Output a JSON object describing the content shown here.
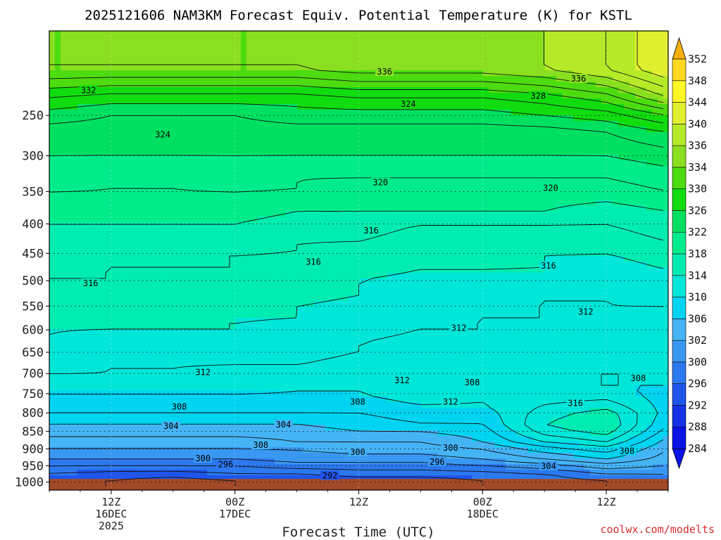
{
  "chart_data": {
    "type": "heatmap",
    "title": "2025121606 NAM3KM Forecast Equiv. Potential Temperature (K) for KSTL",
    "xlabel": "Forecast Time (UTC)",
    "ylabel": "",
    "credit": "coolwx.com/modelts",
    "y_axis": {
      "scale": "pressure",
      "reversed": true,
      "range": [
        1025,
        165
      ],
      "ticks": [
        250,
        300,
        350,
        400,
        450,
        500,
        550,
        600,
        650,
        700,
        750,
        800,
        850,
        900,
        950,
        1000
      ],
      "tick_labels": [
        "250",
        "300",
        "350",
        "400",
        "450",
        "500",
        "550",
        "600",
        "650",
        "700",
        "750",
        "800",
        "850",
        "900",
        "950",
        "1000"
      ]
    },
    "x_axis": {
      "units": "forecast hour",
      "range": [
        0,
        60
      ],
      "ticks": [
        {
          "hour": 6,
          "lines": [
            "12Z",
            "16DEC",
            "2025"
          ]
        },
        {
          "hour": 18,
          "lines": [
            "00Z",
            "17DEC"
          ]
        },
        {
          "hour": 30,
          "lines": [
            "12Z"
          ]
        },
        {
          "hour": 42,
          "lines": [
            "00Z",
            "18DEC"
          ]
        },
        {
          "hour": 54,
          "lines": [
            "12Z"
          ]
        }
      ]
    },
    "colorbar": {
      "levels": [
        284,
        288,
        292,
        296,
        300,
        302,
        306,
        310,
        314,
        318,
        322,
        326,
        330,
        334,
        336,
        340,
        344,
        348,
        352
      ],
      "labels": [
        "284",
        "288",
        "292",
        "296",
        "300",
        "302",
        "306",
        "310",
        "314",
        "318",
        "322",
        "326",
        "330",
        "334",
        "336",
        "340",
        "344",
        "348",
        "352"
      ],
      "colors": [
        "#0a14e6",
        "#1433e8",
        "#1f55ea",
        "#2c78ee",
        "#3a98f2",
        "#45b4f5",
        "#00d4f0",
        "#00e6d8",
        "#00ecb0",
        "#00ec8a",
        "#00e060",
        "#10dc10",
        "#4cdc10",
        "#8ae020",
        "#b6ea28",
        "#e0f030",
        "#fff828",
        "#ffd820",
        "#f4b010"
      ]
    },
    "ground": {
      "top_pressure": 990,
      "color": "#a24a28"
    },
    "levels_profile_pressure": [
      200,
      230,
      250,
      270,
      300,
      330,
      350,
      380,
      400,
      430,
      450,
      480,
      500,
      530,
      550,
      580,
      600,
      630,
      650,
      680,
      700,
      730,
      750,
      780,
      800,
      830,
      850,
      880,
      900,
      930,
      950,
      975,
      990
    ],
    "field_hours": [
      0,
      6,
      12,
      18,
      24,
      30,
      36,
      42,
      48,
      54,
      60
    ],
    "field_theta_e": [
      [
        334,
        334,
        334,
        334,
        334,
        335,
        335,
        335,
        336,
        338,
        342
      ],
      [
        328,
        327,
        327,
        327,
        327,
        328,
        328,
        328,
        329,
        331,
        336
      ],
      [
        325,
        324,
        324,
        324,
        325,
        325,
        325,
        325,
        326,
        327,
        330
      ],
      [
        323,
        323,
        323,
        323,
        323,
        323,
        323,
        323,
        323,
        324,
        326
      ],
      [
        322,
        322,
        322,
        322,
        322,
        322,
        322,
        322,
        322,
        322,
        323
      ],
      [
        321,
        320,
        320,
        321,
        320,
        320,
        320,
        320,
        320,
        320,
        321
      ],
      [
        320,
        320,
        320,
        320,
        320,
        319,
        319,
        319,
        319,
        319,
        320
      ],
      [
        319,
        319,
        319,
        319,
        318,
        318,
        318,
        318,
        318,
        317,
        318
      ],
      [
        318,
        318,
        318,
        318,
        317,
        317,
        316,
        316,
        316,
        316,
        317
      ],
      [
        317,
        317,
        317,
        317,
        316,
        316,
        315,
        315,
        315,
        315,
        316
      ],
      [
        317,
        316,
        316,
        316,
        316,
        315,
        315,
        315,
        314,
        314,
        315
      ],
      [
        316,
        316,
        316,
        316,
        315,
        315,
        314,
        314,
        314,
        313,
        314
      ],
      [
        316,
        316,
        315,
        315,
        315,
        314,
        313,
        313,
        313,
        313,
        313
      ],
      [
        315,
        315,
        315,
        315,
        315,
        314,
        313,
        312,
        312,
        312,
        313
      ],
      [
        315,
        315,
        315,
        315,
        314,
        313,
        312,
        312,
        312,
        312,
        312
      ],
      [
        315,
        314,
        314,
        314,
        314,
        313,
        312,
        312,
        312,
        311,
        312
      ],
      [
        314,
        314,
        314,
        314,
        313,
        313,
        312,
        312,
        311,
        311,
        312
      ],
      [
        314,
        313,
        313,
        313,
        313,
        312,
        311,
        311,
        311,
        311,
        311
      ],
      [
        313,
        313,
        313,
        313,
        313,
        312,
        311,
        311,
        311,
        311,
        311
      ],
      [
        313,
        312,
        312,
        312,
        312,
        311,
        311,
        311,
        311,
        310,
        311
      ],
      [
        312,
        312,
        312,
        311,
        311,
        311,
        312,
        311,
        310,
        310,
        310
      ],
      [
        311,
        311,
        311,
        311,
        310,
        310,
        311,
        310,
        310,
        310,
        310
      ],
      [
        310,
        310,
        310,
        310,
        310,
        310,
        311,
        310,
        311,
        311,
        309
      ],
      [
        309,
        309,
        309,
        309,
        309,
        309,
        310,
        310,
        312,
        313,
        309
      ],
      [
        308,
        308,
        308,
        308,
        308,
        308,
        309,
        309,
        313,
        315,
        309
      ],
      [
        306,
        306,
        306,
        306,
        306,
        307,
        308,
        308,
        314,
        316,
        308
      ],
      [
        305,
        305,
        305,
        305,
        305,
        306,
        306,
        307,
        313,
        315,
        307
      ],
      [
        303,
        303,
        303,
        303,
        304,
        304,
        304,
        306,
        310,
        312,
        305
      ],
      [
        302,
        302,
        302,
        302,
        302,
        303,
        303,
        304,
        307,
        309,
        304
      ],
      [
        300,
        300,
        300,
        300,
        301,
        301,
        301,
        302,
        304,
        306,
        303
      ],
      [
        298,
        298,
        298,
        298,
        299,
        299,
        299,
        300,
        301,
        303,
        302
      ],
      [
        296,
        295,
        295,
        296,
        296,
        297,
        297,
        297,
        298,
        300,
        300
      ],
      [
        294,
        294,
        293,
        294,
        294,
        295,
        295,
        296,
        297,
        298,
        299
      ]
    ],
    "contour_labels": [
      {
        "text": "336",
        "hour": 32.5,
        "pressure": 203
      },
      {
        "text": "336",
        "hour": 51.3,
        "pressure": 210
      },
      {
        "text": "332",
        "hour": 3.8,
        "pressure": 222
      },
      {
        "text": "328",
        "hour": 47.4,
        "pressure": 228
      },
      {
        "text": "324",
        "hour": 34.8,
        "pressure": 237
      },
      {
        "text": "324",
        "hour": 11.0,
        "pressure": 273
      },
      {
        "text": "320",
        "hour": 32.1,
        "pressure": 337
      },
      {
        "text": "320",
        "hour": 48.6,
        "pressure": 345
      },
      {
        "text": "316",
        "hour": 31.2,
        "pressure": 411
      },
      {
        "text": "316",
        "hour": 25.6,
        "pressure": 465
      },
      {
        "text": "316",
        "hour": 48.4,
        "pressure": 472
      },
      {
        "text": "316",
        "hour": 4.0,
        "pressure": 505
      },
      {
        "text": "312",
        "hour": 52.0,
        "pressure": 562
      },
      {
        "text": "312",
        "hour": 39.7,
        "pressure": 596
      },
      {
        "text": "312",
        "hour": 14.9,
        "pressure": 697
      },
      {
        "text": "312",
        "hour": 34.2,
        "pressure": 717
      },
      {
        "text": "308",
        "hour": 41.0,
        "pressure": 722
      },
      {
        "text": "308",
        "hour": 57.1,
        "pressure": 712
      },
      {
        "text": "312",
        "hour": 38.9,
        "pressure": 771
      },
      {
        "text": "308",
        "hour": 29.9,
        "pressure": 771
      },
      {
        "text": "316",
        "hour": 51.0,
        "pressure": 775
      },
      {
        "text": "308",
        "hour": 12.6,
        "pressure": 784
      },
      {
        "text": "304",
        "hour": 11.8,
        "pressure": 836
      },
      {
        "text": "304",
        "hour": 22.7,
        "pressure": 832
      },
      {
        "text": "308",
        "hour": 20.5,
        "pressure": 889
      },
      {
        "text": "300",
        "hour": 29.9,
        "pressure": 909
      },
      {
        "text": "300",
        "hour": 38.9,
        "pressure": 897
      },
      {
        "text": "308",
        "hour": 56.0,
        "pressure": 906
      },
      {
        "text": "300",
        "hour": 14.9,
        "pressure": 928
      },
      {
        "text": "296",
        "hour": 17.1,
        "pressure": 946
      },
      {
        "text": "296",
        "hour": 37.6,
        "pressure": 938
      },
      {
        "text": "304",
        "hour": 48.4,
        "pressure": 951
      },
      {
        "text": "292",
        "hour": 27.2,
        "pressure": 980
      }
    ]
  }
}
